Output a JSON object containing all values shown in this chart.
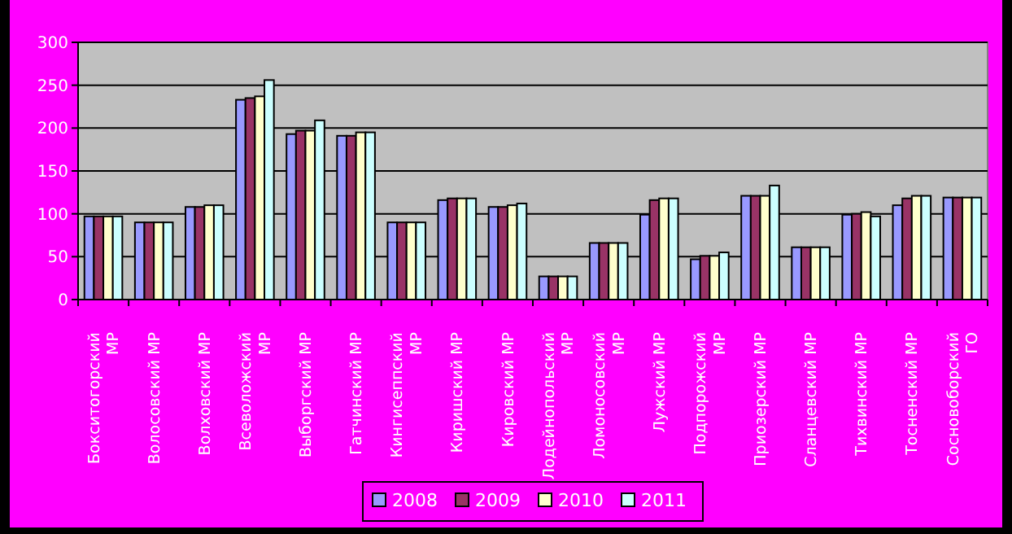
{
  "chart_data": {
    "type": "bar",
    "categories": [
      "Бокситогорский МР",
      "Волосовский МР",
      "Волховский МР",
      "Всеволожский МР",
      "Выборгский МР",
      "Гатчинский МР",
      "Кингисеппский МР",
      "Киришский МР",
      "Кировский МР",
      "Лодейнопольский МР",
      "Ломоносовский МР",
      "Лужский МР",
      "Подпорожский МР",
      "Приозерский МР",
      "Сланцевский МР",
      "Тихвинский МР",
      "Тосненский МР",
      "Сосновоборский ГО"
    ],
    "series": [
      {
        "name": "2008",
        "color": "#9999ff",
        "values": [
          97,
          90,
          108,
          233,
          193,
          191,
          90,
          116,
          108,
          27,
          66,
          99,
          47,
          121,
          61,
          99,
          110,
          119
        ]
      },
      {
        "name": "2009",
        "color": "#993366",
        "values": [
          97,
          90,
          108,
          235,
          197,
          191,
          90,
          118,
          108,
          27,
          66,
          116,
          51,
          121,
          61,
          100,
          118,
          119
        ]
      },
      {
        "name": "2010",
        "color": "#ffffcc",
        "values": [
          97,
          90,
          110,
          237,
          197,
          195,
          90,
          118,
          110,
          27,
          66,
          118,
          51,
          121,
          61,
          102,
          121,
          119
        ]
      },
      {
        "name": "2011",
        "color": "#ccffff",
        "values": [
          97,
          90,
          110,
          256,
          209,
          195,
          90,
          118,
          112,
          27,
          66,
          118,
          55,
          133,
          61,
          97,
          121,
          119
        ]
      }
    ],
    "ylim": [
      0,
      300
    ],
    "yticks": [
      0,
      50,
      100,
      150,
      200,
      250,
      300
    ],
    "grid": "y",
    "legend": "bottom"
  }
}
